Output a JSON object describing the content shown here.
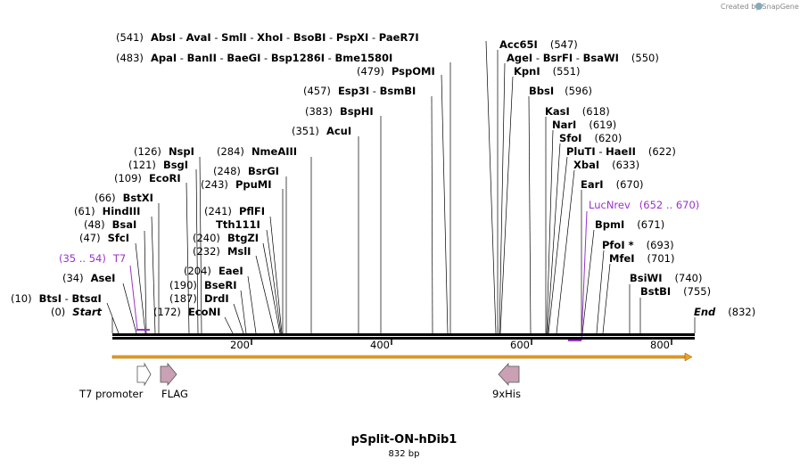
{
  "credit": "Created by SnapGene",
  "title": "pSplit-ON-hDib1",
  "subtitle": "832 bp",
  "start_label": "Start",
  "start_pos": "(0)",
  "end_label": "End",
  "end_pos": "(832)",
  "ruler_ticks": [
    "200",
    "400",
    "600",
    "800"
  ],
  "sites": [
    {
      "pos": "(541)",
      "names": [
        "AbsI",
        "AvaI",
        "SmlI",
        "XhoI",
        "BsoBI",
        "PspXI",
        "PaeR7I"
      ]
    },
    {
      "pos": "(483)",
      "names": [
        "ApaI",
        "BanII",
        "BaeGI",
        "Bsp1286I",
        "Bme1580I"
      ]
    },
    {
      "pos": "(479)",
      "names": [
        "PspOMI"
      ]
    },
    {
      "pos": "(457)",
      "names": [
        "Esp3I",
        "BsmBI"
      ]
    },
    {
      "pos": "(383)",
      "names": [
        "BspHI"
      ]
    },
    {
      "pos": "(351)",
      "names": [
        "AcuI"
      ]
    },
    {
      "pos": "(126)",
      "names": [
        "NspI"
      ]
    },
    {
      "pos": "(284)",
      "names": [
        "NmeAIII"
      ]
    },
    {
      "pos": "(121)",
      "names": [
        "BsgI"
      ]
    },
    {
      "pos": "(248)",
      "names": [
        "BsrGI"
      ]
    },
    {
      "pos": "(109)",
      "names": [
        "EcoRI"
      ]
    },
    {
      "pos": "(243)",
      "names": [
        "PpuMI"
      ]
    },
    {
      "pos": "(66)",
      "names": [
        "BstXI"
      ]
    },
    {
      "pos": "(61)",
      "names": [
        "HindIII"
      ]
    },
    {
      "pos": "(241)",
      "names": [
        "PflFI"
      ]
    },
    {
      "pos": "",
      "names": [
        "Tth111I"
      ]
    },
    {
      "pos": "(48)",
      "names": [
        "BsaI"
      ]
    },
    {
      "pos": "(47)",
      "names": [
        "SfcI"
      ]
    },
    {
      "pos": "(240)",
      "names": [
        "BtgZI"
      ]
    },
    {
      "pos": "(232)",
      "names": [
        "MslI"
      ]
    },
    {
      "pos": "(34)",
      "names": [
        "AseI"
      ]
    },
    {
      "pos": "(204)",
      "names": [
        "EaeI"
      ]
    },
    {
      "pos": "(190)",
      "names": [
        "BseRI"
      ]
    },
    {
      "pos": "(10)",
      "names": [
        "BtsI",
        "BtsαI"
      ]
    },
    {
      "pos": "(187)",
      "names": [
        "DrdI"
      ]
    },
    {
      "pos": "(172)",
      "names": [
        "EcoNI"
      ]
    },
    {
      "pos": "(547)",
      "names": [
        "Acc65I"
      ]
    },
    {
      "pos": "(550)",
      "names": [
        "AgeI",
        "BsrFI",
        "BsaWI"
      ]
    },
    {
      "pos": "(551)",
      "names": [
        "KpnI"
      ]
    },
    {
      "pos": "(596)",
      "names": [
        "BbsI"
      ]
    },
    {
      "pos": "(618)",
      "names": [
        "KasI"
      ]
    },
    {
      "pos": "(619)",
      "names": [
        "NarI"
      ]
    },
    {
      "pos": "(620)",
      "names": [
        "SfoI"
      ]
    },
    {
      "pos": "(622)",
      "names": [
        "PluTI",
        "HaeII"
      ]
    },
    {
      "pos": "(633)",
      "names": [
        "XbaI"
      ]
    },
    {
      "pos": "(670)",
      "names": [
        "EarI"
      ]
    },
    {
      "pos": "(671)",
      "names": [
        "BpmI"
      ]
    },
    {
      "pos": "(693)",
      "names": [
        "PfoI *"
      ]
    },
    {
      "pos": "(701)",
      "names": [
        "MfeI"
      ]
    },
    {
      "pos": "(740)",
      "names": [
        "BsiWI"
      ]
    },
    {
      "pos": "(755)",
      "names": [
        "BstBI"
      ]
    }
  ],
  "primers": [
    {
      "name": "T7",
      "range": "(35 .. 54)"
    },
    {
      "name": "LucNrev",
      "range": "(652 .. 670)"
    }
  ],
  "features": [
    {
      "name": "T7 promoter",
      "color": "#ffffff"
    },
    {
      "name": "FLAG",
      "color": "#c9a0b4"
    },
    {
      "name": "9xHis",
      "color": "#c9a0b4"
    }
  ],
  "colors": {
    "primer": "#9933cc",
    "orf": "#f0a020",
    "feature": "#c9a0b4",
    "backbone": "#000000"
  }
}
